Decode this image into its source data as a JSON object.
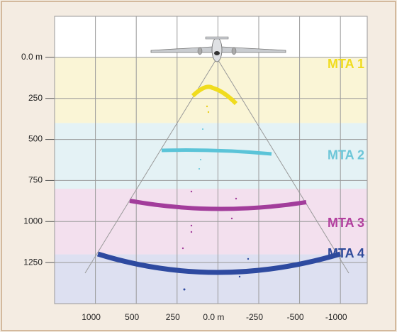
{
  "chart_data": {
    "type": "zones",
    "categories": [
      null,
      "1000",
      "500",
      "250",
      "0.0 m",
      "-250",
      "-500",
      "-1000"
    ],
    "ylim": [
      -250,
      1500
    ],
    "y_inverted": true,
    "yticks": [
      {
        "value": 0,
        "label": "0.0 m"
      },
      250,
      500,
      750,
      1000,
      1250
    ],
    "grid": true,
    "zones": [
      {
        "label": "MTA 1",
        "range": [
          0,
          400
        ],
        "color": "#faf5d6",
        "label_color": "#f0dc1e"
      },
      {
        "label": "MTA 2",
        "range": [
          400,
          800
        ],
        "color": "#e4f2f5",
        "label_color": "#6cc6d8"
      },
      {
        "label": "MTA 3",
        "range": [
          800,
          1200
        ],
        "color": "#f3e0ee",
        "label_color": "#b23f9e"
      },
      {
        "label": "MTA 4",
        "range": [
          1200,
          1500
        ],
        "color": "#dde0f1",
        "label_color": "#2e4a9a"
      }
    ]
  }
}
